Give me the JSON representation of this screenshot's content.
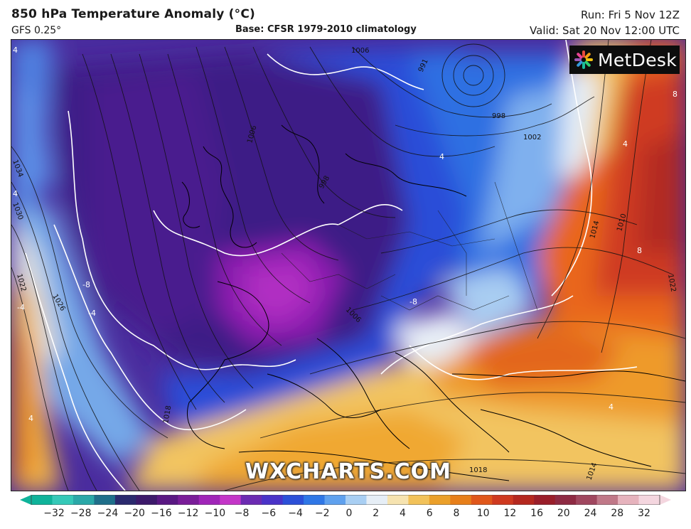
{
  "header": {
    "title": "850 hPa Temperature Anomaly (°C)",
    "model": "GFS 0.25°",
    "base": "Base: CFSR 1979-2010 climatology",
    "run": "Run: Fri 5 Nov 12Z",
    "valid": "Valid: Sat 20 Nov 12:00 UTC"
  },
  "logo": {
    "text": "MetDesk"
  },
  "watermark": "WXCHARTS.COM",
  "isobar_labels": [
    "1006",
    "1006",
    "991",
    "998",
    "1002",
    "998",
    "1006",
    "1034",
    "1030",
    "1022",
    "1026",
    "1018",
    "1022",
    "1018",
    "1014",
    "1014",
    "1010"
  ],
  "anomaly_labels": [
    "-8",
    "-8",
    "-4",
    "-4",
    "4",
    "4",
    "4",
    "4",
    "8",
    "8",
    "4",
    "4"
  ],
  "colorbar": {
    "ticks": [
      "−32",
      "−28",
      "−24",
      "−20",
      "−16",
      "−12",
      "−10",
      "−8",
      "−6",
      "−4",
      "−2",
      "0",
      "2",
      "4",
      "6",
      "8",
      "10",
      "12",
      "16",
      "20",
      "24",
      "28",
      "32"
    ],
    "colors": [
      "#0fb39a",
      "#35c9b8",
      "#2aa8a8",
      "#1f6f8a",
      "#2b2a6e",
      "#3d1a6b",
      "#5a1883",
      "#7a1d99",
      "#a025b8",
      "#c436c8",
      "#6c2bb2",
      "#4a33c8",
      "#2c50d8",
      "#2f77e6",
      "#5fa1ee",
      "#a9cff3",
      "#e6eef6",
      "#f6e3b0",
      "#f2c25a",
      "#eba02a",
      "#e77f1a",
      "#e0571b",
      "#cf3a20",
      "#b5281f",
      "#9a1e2a",
      "#8e2a43",
      "#a0475f",
      "#c07888",
      "#e6b3bd",
      "#f4d6df"
    ]
  }
}
